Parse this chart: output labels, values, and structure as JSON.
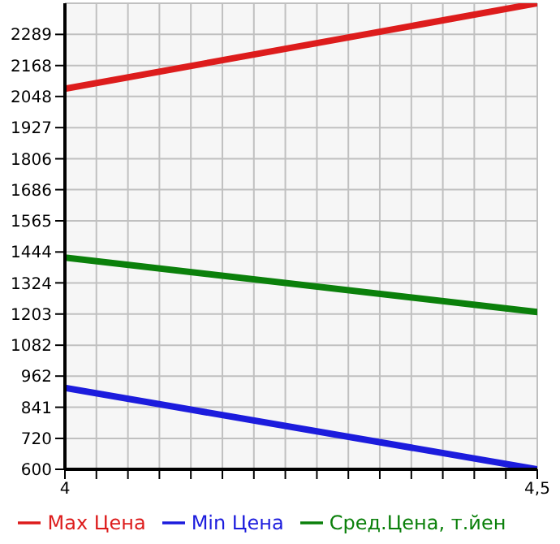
{
  "chart_data": {
    "type": "line",
    "x": [
      4,
      4.5
    ],
    "series": [
      {
        "name": "Max Цена",
        "color": "#dd1c1c",
        "values": [
          2078,
          2410
        ]
      },
      {
        "name": "Min Цена",
        "color": "#1c1cdd",
        "values": [
          916,
          600
        ]
      },
      {
        "name": "Сред.Цена, т.йен",
        "color": "#0b800b",
        "values": [
          1422,
          1211
        ]
      }
    ],
    "xlim": [
      4,
      4.5
    ],
    "xticks": [
      4,
      {
        "value": 4.0333,
        "label": null
      },
      {
        "value": 4.0667,
        "label": null
      },
      {
        "value": 4.1,
        "label": null
      },
      {
        "value": 4.1333,
        "label": null
      },
      {
        "value": 4.1667,
        "label": null
      },
      {
        "value": 4.2,
        "label": null
      },
      {
        "value": 4.2333,
        "label": null
      },
      {
        "value": 4.2667,
        "label": null
      },
      {
        "value": 4.3,
        "label": null
      },
      {
        "value": 4.3333,
        "label": null
      },
      {
        "value": 4.3667,
        "label": null
      },
      {
        "value": 4.4,
        "label": null
      },
      {
        "value": 4.4333,
        "label": null
      },
      {
        "value": 4.4667,
        "label": null
      },
      {
        "value": 4.5,
        "label": "4,5"
      }
    ],
    "ylim": [
      600,
      2410
    ],
    "yticks": [
      600,
      720,
      841,
      962,
      1082,
      1203,
      1324,
      1444,
      1565,
      1686,
      1806,
      1927,
      2048,
      2168,
      2289
    ],
    "grid": true,
    "legend": "bottom",
    "marker": "none",
    "line_style": "solid"
  }
}
